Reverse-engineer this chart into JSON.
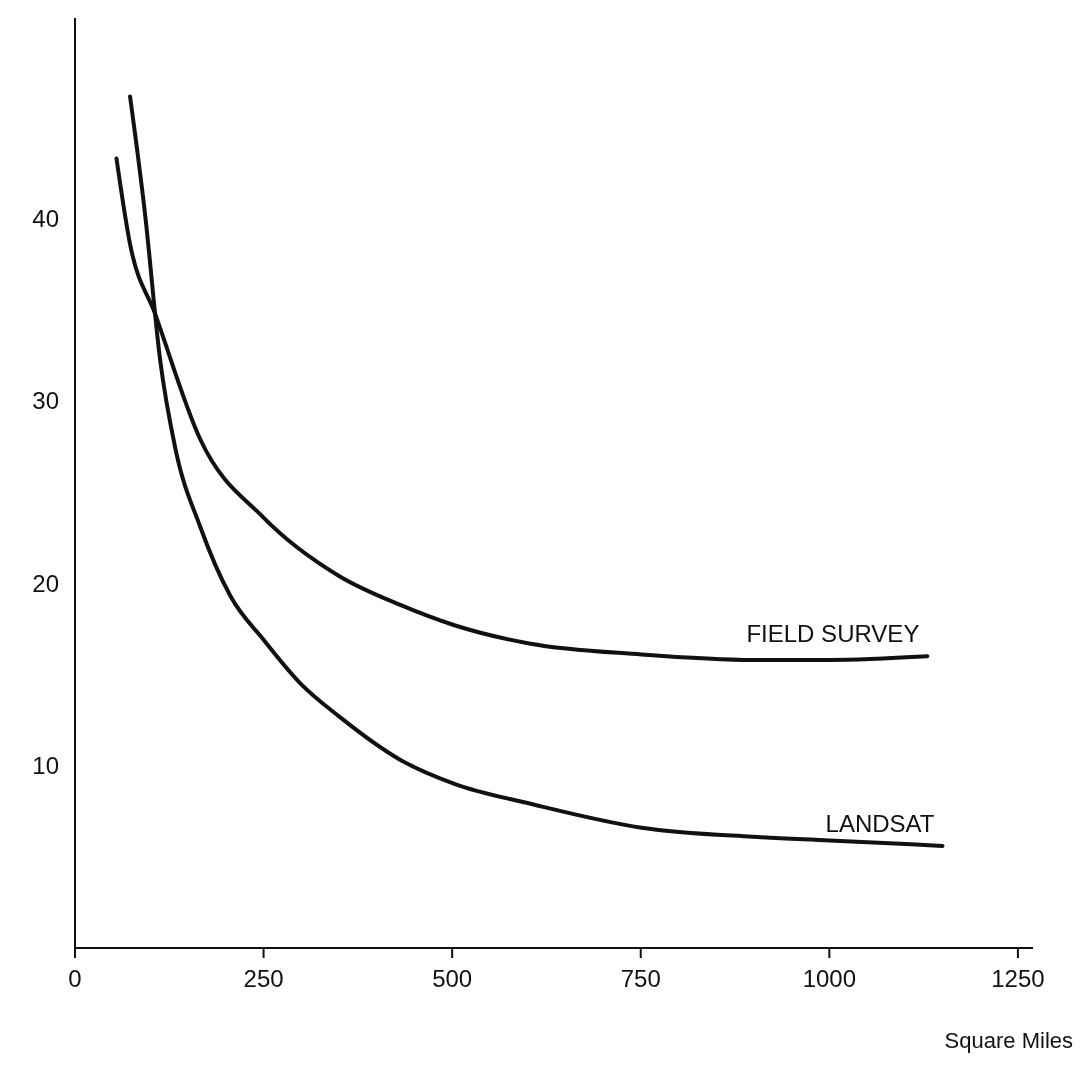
{
  "chart_data": {
    "type": "line",
    "xlabel": "Square Miles",
    "xlim": [
      0,
      1270
    ],
    "xticks": [
      0,
      250,
      500,
      750,
      1000,
      1250
    ],
    "ylim": [
      0,
      51
    ],
    "yticks": [
      10,
      20,
      30,
      40
    ],
    "grid": false,
    "legend": false,
    "marker": "none",
    "line_style": "solid",
    "series": [
      {
        "name": "FIELD SURVEY",
        "color": "#111111",
        "x": [
          55,
          73,
          106,
          166,
          250,
          350,
          432,
          503,
          602,
          751,
          900,
          1000,
          1130
        ],
        "values": [
          43.3,
          38.6,
          34.8,
          27.9,
          23.6,
          20.4,
          18.8,
          17.7,
          16.7,
          16.1,
          15.8,
          15.8,
          16.0
        ]
      },
      {
        "name": "LANDSAT",
        "color": "#111111",
        "x": [
          73,
          93,
          113,
          133,
          166,
          206,
          250,
          299,
          350,
          432,
          503,
          605,
          751,
          898,
          1000,
          1150
        ],
        "values": [
          46.7,
          40.2,
          32.2,
          27.4,
          23.1,
          19.3,
          16.9,
          14.5,
          12.7,
          10.3,
          9.0,
          7.9,
          6.6,
          6.1,
          5.9,
          5.6
        ]
      }
    ]
  }
}
